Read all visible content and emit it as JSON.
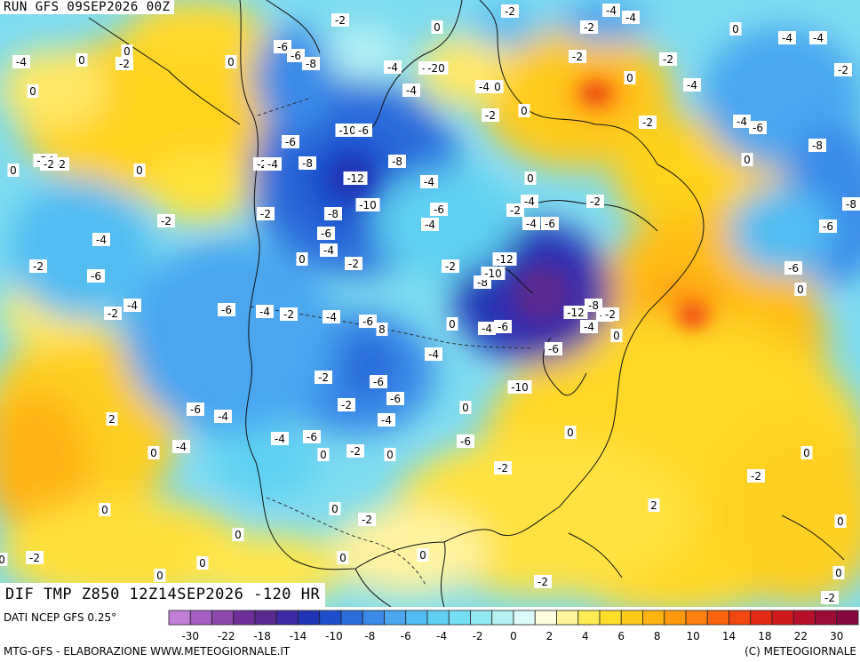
{
  "header": {
    "run_label": "RUN GFS 09SEP2026 00Z"
  },
  "footer": {
    "title": "DIF TMP Z850 12Z14SEP2026 -120 HR"
  },
  "bottom": {
    "source": "DATI NCEP GFS 0.25°",
    "credit_left": "MTG-GFS - ELABORAZIONE WWW.METEOGIORNALE.IT",
    "credit_right": "(C) METEOGIORNALE"
  },
  "legend": {
    "tick_labels": [
      "-30",
      "-22",
      "-18",
      "-14",
      "-10",
      "-8",
      "-6",
      "-4",
      "-2",
      "0",
      "2",
      "4",
      "6",
      "8",
      "10",
      "14",
      "18",
      "22",
      "30"
    ],
    "colors": [
      "#c27fd6",
      "#a55fc2",
      "#8c48ad",
      "#6f2f99",
      "#5a2a8f",
      "#3f2aa6",
      "#2035b5",
      "#1f4fcc",
      "#2a6ddb",
      "#3a8ae8",
      "#4aa6ef",
      "#52bdf2",
      "#5fd0f2",
      "#74dff2",
      "#93e9f2",
      "#b6f2f2",
      "#dcfafa",
      "#fffde0",
      "#fff59a",
      "#ffec55",
      "#ffde2a",
      "#ffcb1a",
      "#ffb412",
      "#ff9a0e",
      "#ff800e",
      "#f9640e",
      "#f0480f",
      "#e32a12",
      "#d11a1e",
      "#b6102a",
      "#9c0c36",
      "#86083e"
    ]
  },
  "map_labels": [
    {
      "t": "-2"
    },
    {
      "t": "-2"
    },
    {
      "t": "-4"
    },
    {
      "t": "-4"
    },
    {
      "t": "0"
    },
    {
      "t": "-2"
    },
    {
      "t": "0"
    },
    {
      "t": "-4"
    },
    {
      "t": "-4"
    },
    {
      "t": "0"
    },
    {
      "t": "-4"
    },
    {
      "t": "0"
    },
    {
      "t": "-6"
    },
    {
      "t": "-2"
    },
    {
      "t": "-4"
    },
    {
      "t": "-6"
    },
    {
      "t": "-8"
    },
    {
      "t": "-4"
    },
    {
      "t": "-20"
    },
    {
      "t": "-4"
    },
    {
      "t": "0"
    },
    {
      "t": "0"
    },
    {
      "t": "-2"
    },
    {
      "t": "-4"
    },
    {
      "t": "-2"
    },
    {
      "t": "0"
    },
    {
      "t": "-4"
    },
    {
      "t": "0"
    },
    {
      "t": "-2"
    },
    {
      "t": "-2"
    },
    {
      "t": "0"
    },
    {
      "t": "-2"
    },
    {
      "t": "-4"
    },
    {
      "t": "-6"
    },
    {
      "t": "0"
    },
    {
      "t": "-2"
    },
    {
      "t": "-24"
    },
    {
      "t": "-6"
    },
    {
      "t": "-2"
    },
    {
      "t": "-10"
    },
    {
      "t": "-6"
    },
    {
      "t": "0"
    },
    {
      "t": "-2"
    },
    {
      "t": "-4"
    },
    {
      "t": "-8"
    },
    {
      "t": "-8"
    },
    {
      "t": "-4"
    },
    {
      "t": "-8"
    },
    {
      "t": "0"
    },
    {
      "t": "-12"
    },
    {
      "t": "-10"
    },
    {
      "t": "-4"
    },
    {
      "t": "-2"
    },
    {
      "t": "-2"
    },
    {
      "t": "0"
    },
    {
      "t": "-4"
    },
    {
      "t": "-8"
    },
    {
      "t": "-6"
    },
    {
      "t": "-6"
    },
    {
      "t": "-2"
    },
    {
      "t": "-6"
    },
    {
      "t": "-4"
    },
    {
      "t": "0"
    },
    {
      "t": "-2"
    },
    {
      "t": "-4"
    },
    {
      "t": "-6"
    },
    {
      "t": "-4"
    },
    {
      "t": "-8"
    },
    {
      "t": "-2"
    },
    {
      "t": "-6"
    },
    {
      "t": "-2"
    },
    {
      "t": "-12"
    },
    {
      "t": "-8"
    },
    {
      "t": "-10"
    },
    {
      "t": "-6"
    },
    {
      "t": "0"
    },
    {
      "t": "-2"
    },
    {
      "t": "-4"
    },
    {
      "t": "-2"
    },
    {
      "t": "-6"
    },
    {
      "t": "-4"
    },
    {
      "t": "-2"
    },
    {
      "t": "-4"
    },
    {
      "t": "-6"
    },
    {
      "t": "8"
    },
    {
      "t": "-2"
    },
    {
      "t": "0"
    },
    {
      "t": "-12"
    },
    {
      "t": "-8"
    },
    {
      "t": "-2"
    },
    {
      "t": "-4"
    },
    {
      "t": "-6"
    },
    {
      "t": "-4"
    },
    {
      "t": "0"
    },
    {
      "t": "-4"
    },
    {
      "t": "-6"
    },
    {
      "t": "-2"
    },
    {
      "t": "-6"
    },
    {
      "t": "-10"
    },
    {
      "t": "-6"
    },
    {
      "t": "-2"
    },
    {
      "t": "-6"
    },
    {
      "t": "-4"
    },
    {
      "t": "0"
    },
    {
      "t": "2"
    },
    {
      "t": "-4"
    },
    {
      "t": "-4"
    },
    {
      "t": "-6"
    },
    {
      "t": "0"
    },
    {
      "t": "-6"
    },
    {
      "t": "-4"
    },
    {
      "t": "0"
    },
    {
      "t": "0"
    },
    {
      "t": "-2"
    },
    {
      "t": "0"
    },
    {
      "t": "-2"
    },
    {
      "t": "0"
    },
    {
      "t": "-2"
    },
    {
      "t": "0"
    },
    {
      "t": "2"
    },
    {
      "t": "0"
    },
    {
      "t": "-2"
    },
    {
      "t": "0"
    },
    {
      "t": "0"
    },
    {
      "t": "-2"
    },
    {
      "t": "0"
    },
    {
      "t": "0"
    },
    {
      "t": "0"
    },
    {
      "t": "0"
    },
    {
      "t": "-2"
    },
    {
      "t": "0"
    },
    {
      "t": "-2"
    },
    {
      "t": "0"
    },
    {
      "t": "0"
    }
  ]
}
